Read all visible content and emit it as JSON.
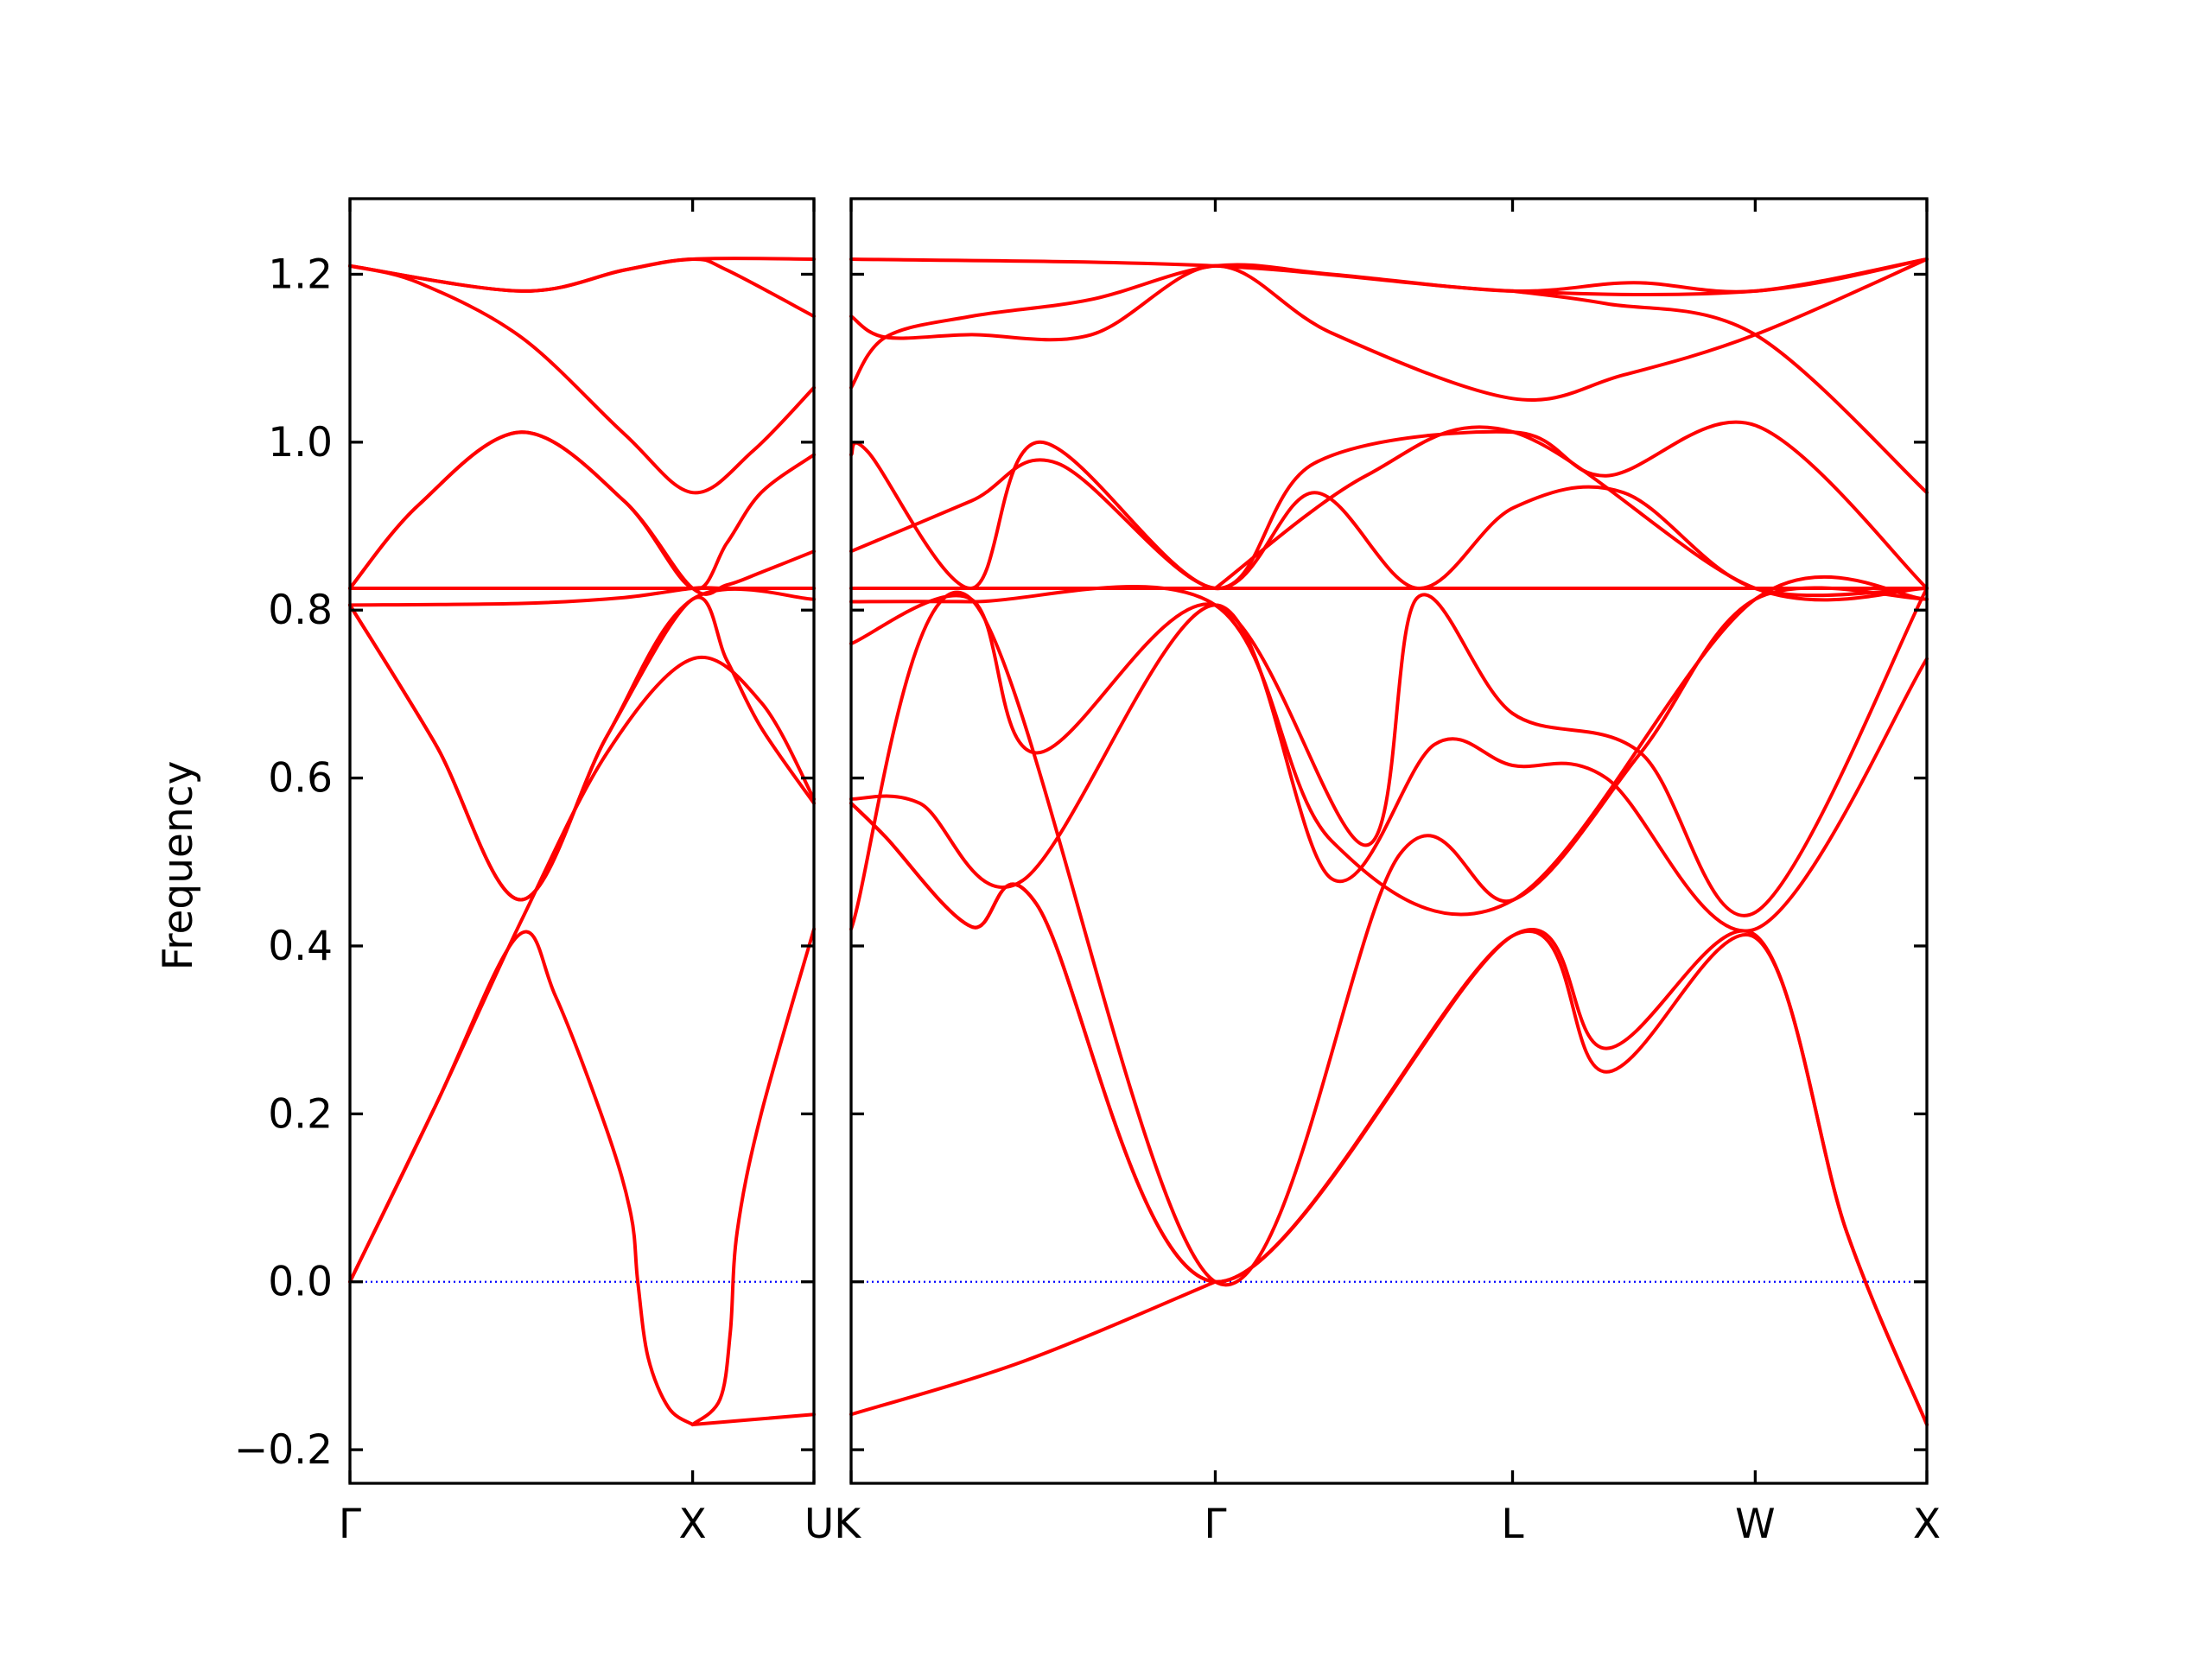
{
  "chart_data": {
    "type": "line",
    "title": "",
    "xlabel": "",
    "ylabel": "Frequency",
    "ylim": [
      -0.24,
      1.29
    ],
    "y_ticks": [
      -0.2,
      0.0,
      0.2,
      0.4,
      0.6,
      0.8,
      1.0,
      1.2
    ],
    "y_tick_labels": [
      "−0.2",
      "0.0",
      "0.2",
      "0.4",
      "0.6",
      "0.8",
      "1.0",
      "1.2"
    ],
    "grid": false,
    "zero_line": {
      "y": 0.0,
      "style": "dotted",
      "color": "#0000ff"
    },
    "line_color": "#ff0000",
    "x_tick_labels": [
      "Γ",
      "X",
      "UK",
      "Γ",
      "L",
      "W",
      "X"
    ],
    "panels": [
      {
        "path": [
          "Γ",
          "X",
          "U"
        ],
        "segment_lengths": [
          1.0,
          0.354
        ],
        "series": [
          {
            "x": [
              0.0,
              0.5,
              0.8,
              1.0,
              1.354
            ],
            "y": [
              1.21,
              1.18,
              1.205,
              1.218,
              1.218
            ]
          },
          {
            "x": [
              0.0,
              0.2,
              0.5,
              0.8,
              1.0,
              1.177,
              1.354
            ],
            "y": [
              1.21,
              1.19,
              1.125,
              1.01,
              0.94,
              0.99,
              1.065
            ]
          },
          {
            "x": [
              0.0,
              0.5,
              0.8,
              1.0,
              1.1,
              1.354
            ],
            "y": [
              1.21,
              1.18,
              1.205,
              1.218,
              1.205,
              1.15
            ]
          },
          {
            "x": [
              0.0,
              0.2,
              0.5,
              0.8,
              1.0,
              1.1,
              1.2,
              1.354
            ],
            "y": [
              0.826,
              0.925,
              1.012,
              0.93,
              0.826,
              0.88,
              0.94,
              0.985
            ]
          },
          {
            "x": [
              0.0,
              0.2,
              0.5,
              0.8,
              1.0,
              1.1,
              1.2,
              1.354
            ],
            "y": [
              0.826,
              0.925,
              1.012,
              0.93,
              0.826,
              0.83,
              0.845,
              0.87
            ]
          },
          {
            "x": [
              0.0,
              0.5,
              1.0,
              1.354
            ],
            "y": [
              0.826,
              0.826,
              0.826,
              0.826
            ]
          },
          {
            "x": [
              0.0,
              0.5,
              0.8,
              1.0,
              1.1,
              1.354
            ],
            "y": [
              0.806,
              0.808,
              0.815,
              0.826,
              0.826,
              0.826
            ]
          },
          {
            "x": [
              0.0,
              0.25,
              0.5,
              0.75,
              1.0,
              1.354
            ],
            "y": [
              0.806,
              0.64,
              0.455,
              0.65,
              0.813,
              0.813
            ]
          },
          {
            "x": [
              0.0,
              0.25,
              0.5,
              0.75,
              1.0,
              1.1,
              1.2,
              1.354
            ],
            "y": [
              0.806,
              0.64,
              0.455,
              0.65,
              0.813,
              0.74,
              0.66,
              0.57
            ]
          },
          {
            "x": [
              0.0,
              0.25,
              0.5,
              0.75,
              1.0,
              1.2,
              1.354
            ],
            "y": [
              0.0,
              0.21,
              0.43,
              0.63,
              0.742,
              0.69,
              0.575
            ]
          },
          {
            "x": [
              0.0,
              0.25,
              0.49,
              0.6,
              0.75,
              0.82,
              0.84,
              0.87,
              0.93,
              1.0
            ],
            "y": [
              0.0,
              0.21,
              0.412,
              0.34,
              0.18,
              0.08,
              0.0,
              -0.09,
              -0.15,
              -0.17
            ]
          },
          {
            "x": [
              1.0,
              1.08,
              1.11,
              1.13,
              1.2,
              1.354
            ],
            "y": [
              -0.17,
              -0.14,
              -0.06,
              0.06,
              0.2,
              0.42
            ]
          },
          {
            "x": [
              1.0,
              1.354
            ],
            "y": [
              -0.17,
              -0.158
            ]
          }
        ]
      },
      {
        "path": [
          "K",
          "Γ",
          "L",
          "W",
          "X"
        ],
        "segment_lengths": [
          1.061,
          0.866,
          0.707,
          0.5
        ],
        "series": [
          {
            "x": [
              0.0,
              1.061,
              1.927,
              2.634,
              3.134
            ],
            "y": [
              1.218,
              1.21,
              1.18,
              1.18,
              1.218
            ]
          },
          {
            "x": [
              0.0,
              0.1,
              0.35,
              0.7,
              1.061,
              1.4,
              1.927,
              2.25,
              2.634,
              3.134
            ],
            "y": [
              1.15,
              1.125,
              1.128,
              1.128,
              1.21,
              1.13,
              1.052,
              1.08,
              1.128,
              1.218
            ]
          },
          {
            "x": [
              0.0,
              0.1,
              0.35,
              0.7,
              1.061,
              1.4,
              1.927,
              2.28,
              2.634,
              3.134
            ],
            "y": [
              1.065,
              1.125,
              1.15,
              1.17,
              1.21,
              1.2,
              1.18,
              1.19,
              1.18,
              1.218
            ]
          },
          {
            "x": [
              1.927,
              2.2,
              2.634,
              3.134
            ],
            "y": [
              1.18,
              1.165,
              1.128,
              0.94
            ]
          },
          {
            "x": [
              0.0,
              0.05,
              0.35,
              0.55,
              1.061,
              1.35,
              1.93,
              2.2,
              2.634,
              3.134
            ],
            "y": [
              0.985,
              0.988,
              0.826,
              1.0,
              0.826,
              0.975,
              1.012,
              0.96,
              1.02,
              0.826
            ]
          },
          {
            "x": [
              0.0,
              0.35,
              0.6,
              1.061,
              1.35,
              1.65,
              1.93,
              2.25,
              2.634,
              3.134
            ],
            "y": [
              0.87,
              0.93,
              0.975,
              0.826,
              0.94,
              0.826,
              0.922,
              0.94,
              0.826,
              0.826
            ]
          },
          {
            "x": [
              1.061,
              1.5,
              1.93,
              2.634,
              3.134
            ],
            "y": [
              0.826,
              0.96,
              1.012,
              0.826,
              0.826
            ]
          },
          {
            "x": [
              0.0,
              1.061,
              3.134
            ],
            "y": [
              0.826,
              0.826,
              0.826
            ]
          },
          {
            "x": [
              0.0,
              0.35,
              1.061,
              1.4,
              1.93,
              2.634,
              3.134
            ],
            "y": [
              0.81,
              0.81,
              0.806,
              0.525,
              0.455,
              0.813,
              0.813
            ]
          },
          {
            "x": [
              0.0,
              0.35,
              0.54,
              1.061,
              1.5,
              1.65,
              1.927,
              2.3,
              2.634,
              3.134
            ],
            "y": [
              0.76,
              0.813,
              0.63,
              0.806,
              0.52,
              0.815,
              0.677,
              0.63,
              0.44,
              0.826
            ]
          },
          {
            "x": [
              0.0,
              0.2,
              0.5,
              1.061,
              1.4,
              1.7,
              1.927,
              2.2,
              2.634,
              3.134
            ],
            "y": [
              0.575,
              0.57,
              0.478,
              0.806,
              0.48,
              0.64,
              0.615,
              0.6,
              0.42,
              0.742
            ]
          },
          {
            "x": [
              0.0,
              0.35,
              1.061,
              1.6,
              1.93,
              2.3,
              2.634,
              3.134
            ],
            "y": [
              0.42,
              0.813,
              0.0,
              0.51,
              0.455,
              0.63,
              0.813,
              0.813
            ]
          },
          {
            "x": [
              0.0,
              0.1,
              0.35,
              0.54,
              1.061,
              1.927,
              2.2,
              2.634,
              2.9,
              3.134
            ],
            "y": [
              0.57,
              0.53,
              0.423,
              0.45,
              0.0,
              0.412,
              0.278,
              0.413,
              0.06,
              -0.17
            ]
          },
          {
            "x": [
              0.0,
              0.1,
              0.35,
              0.54,
              1.061,
              1.927,
              2.2,
              2.634,
              2.9,
              3.134
            ],
            "y": [
              0.57,
              0.53,
              0.423,
              0.45,
              0.0,
              0.412,
              0.25,
              0.41,
              0.06,
              -0.17
            ]
          },
          {
            "x": [
              0.0,
              0.5,
              1.061
            ],
            "y": [
              -0.158,
              -0.095,
              0.0
            ]
          }
        ]
      }
    ]
  }
}
